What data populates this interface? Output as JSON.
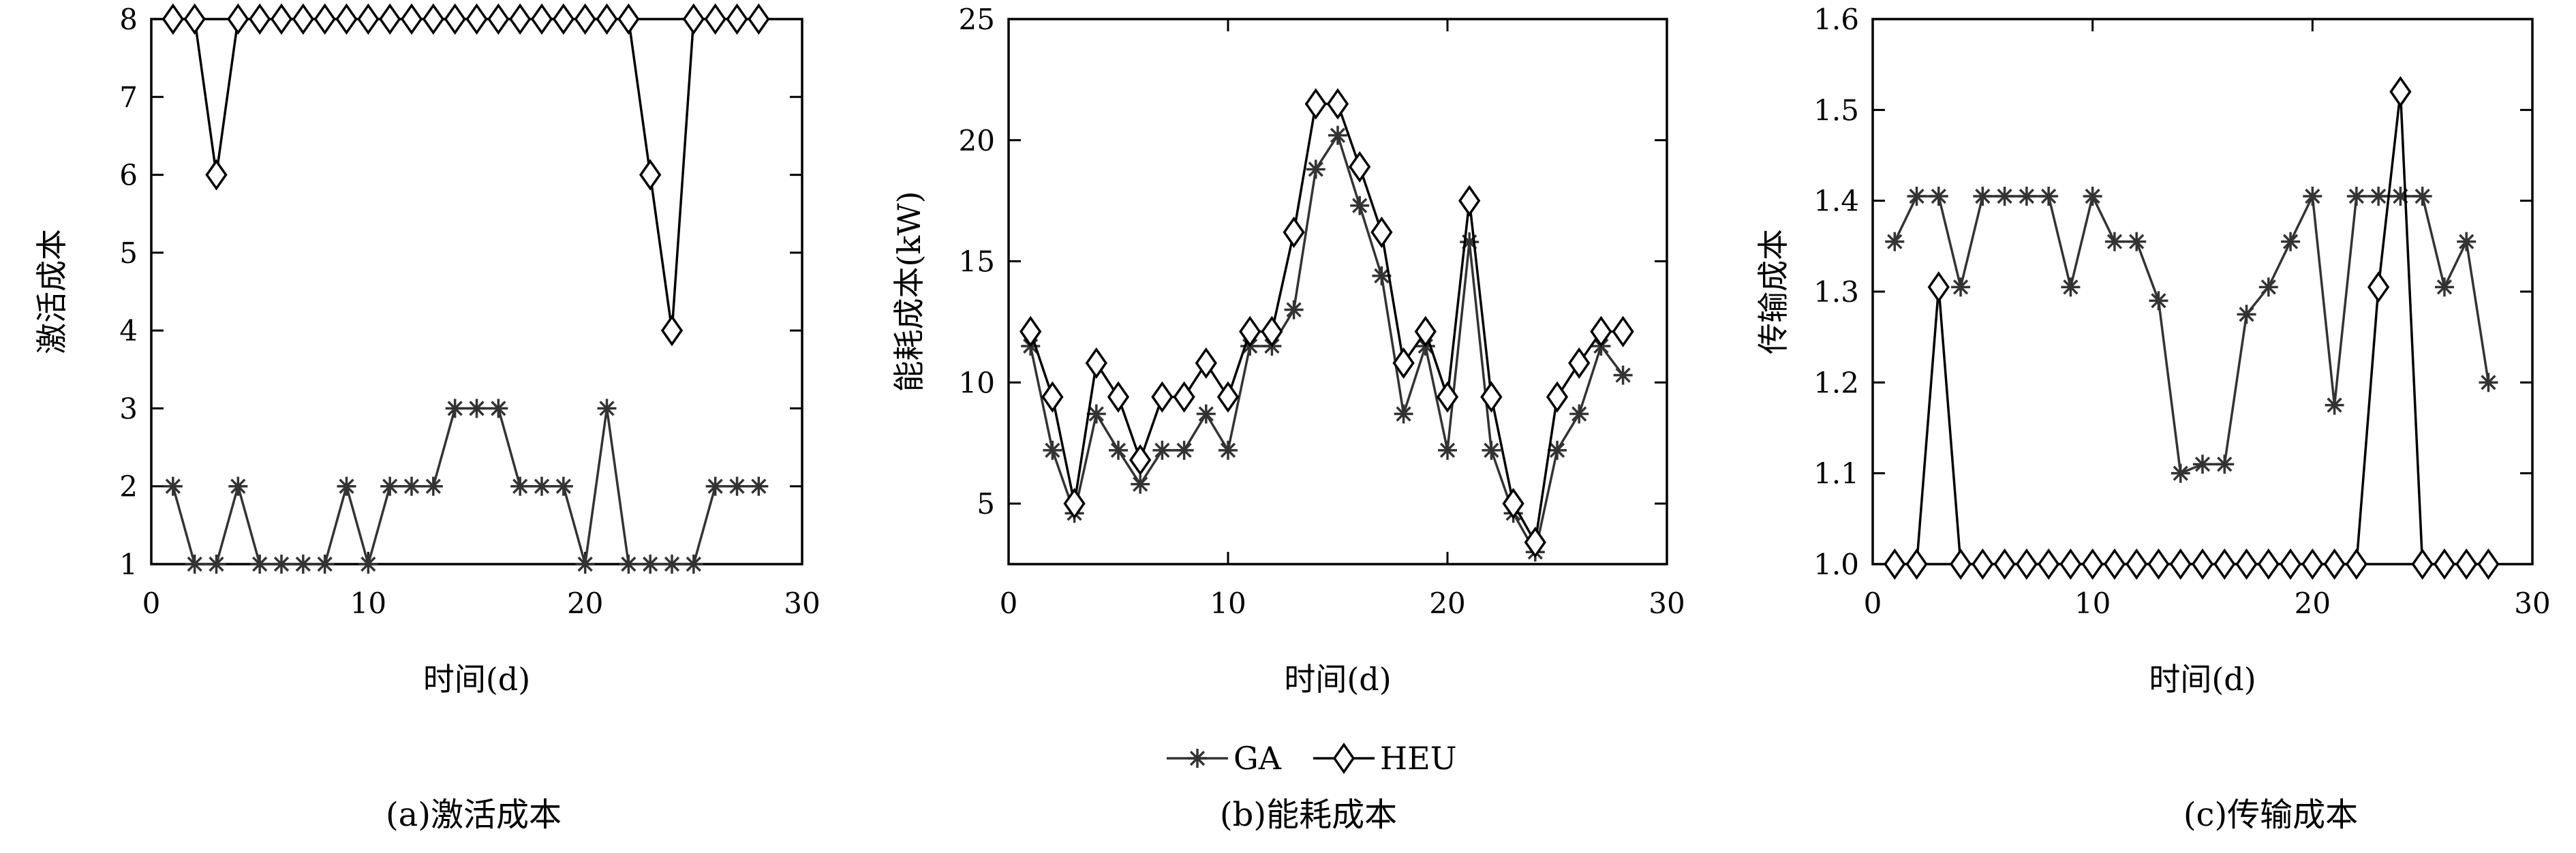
{
  "legend": [
    {
      "name": "GA",
      "marker": "asterisk",
      "color": "#333333"
    },
    {
      "name": "HEU",
      "marker": "diamond",
      "color": "#000000"
    }
  ],
  "chart_data": [
    {
      "type": "line",
      "caption": "(a)激活成本",
      "xlabel": "时间(d)",
      "ylabel": "激活成本",
      "xlim": [
        0,
        30
      ],
      "ylim": [
        1,
        8
      ],
      "xticks": [
        0,
        10,
        20,
        30
      ],
      "yticks": [
        1,
        2,
        3,
        4,
        5,
        6,
        7,
        8
      ],
      "ytick_labels": [
        "1",
        "2",
        "3",
        "4",
        "5",
        "6",
        "7",
        "8"
      ],
      "grid": false,
      "series": [
        {
          "name": "GA",
          "x": [
            1,
            2,
            3,
            4,
            5,
            6,
            7,
            8,
            9,
            10,
            11,
            12,
            13,
            14,
            15,
            16,
            17,
            18,
            19,
            20,
            21,
            22,
            23,
            24,
            25,
            26,
            27,
            28
          ],
          "values": [
            2,
            1,
            1,
            2,
            1,
            1,
            1,
            1,
            2,
            1,
            2,
            2,
            2,
            3,
            3,
            3,
            2,
            2,
            2,
            1,
            3,
            1,
            1,
            1,
            1,
            2,
            2,
            2
          ]
        },
        {
          "name": "HEU",
          "x": [
            1,
            2,
            3,
            4,
            5,
            6,
            7,
            8,
            9,
            10,
            11,
            12,
            13,
            14,
            15,
            16,
            17,
            18,
            19,
            20,
            21,
            22,
            23,
            24,
            25,
            26,
            27,
            28
          ],
          "values": [
            8,
            8,
            6,
            8,
            8,
            8,
            8,
            8,
            8,
            8,
            8,
            8,
            8,
            8,
            8,
            8,
            8,
            8,
            8,
            8,
            8,
            8,
            6,
            4,
            8,
            8,
            8,
            8
          ]
        }
      ]
    },
    {
      "type": "line",
      "caption": "(b)能耗成本",
      "xlabel": "时间(d)",
      "ylabel": "能耗成本(kW)",
      "xlim": [
        0,
        30
      ],
      "ylim": [
        2.5,
        25
      ],
      "xticks": [
        0,
        10,
        20,
        30
      ],
      "yticks": [
        5,
        10,
        15,
        20,
        25
      ],
      "ytick_labels": [
        "5",
        "10",
        "15",
        "20",
        "25"
      ],
      "grid": false,
      "series": [
        {
          "name": "GA",
          "x": [
            1,
            2,
            3,
            4,
            5,
            6,
            7,
            8,
            9,
            10,
            11,
            12,
            13,
            14,
            15,
            16,
            17,
            18,
            19,
            20,
            21,
            22,
            23,
            24,
            25,
            26,
            27,
            28
          ],
          "values": [
            11.5,
            7.2,
            4.6,
            8.7,
            7.2,
            5.8,
            7.2,
            7.2,
            8.7,
            7.2,
            11.5,
            11.5,
            13.0,
            18.8,
            20.2,
            17.3,
            14.4,
            8.7,
            11.5,
            7.2,
            15.8,
            7.2,
            4.6,
            3.0,
            7.2,
            8.7,
            11.5,
            10.3
          ]
        },
        {
          "name": "HEU",
          "x": [
            1,
            2,
            3,
            4,
            5,
            6,
            7,
            8,
            9,
            10,
            11,
            12,
            13,
            14,
            15,
            16,
            17,
            18,
            19,
            20,
            21,
            22,
            23,
            24,
            25,
            26,
            27,
            28
          ],
          "values": [
            12.1,
            9.4,
            5.0,
            10.8,
            9.4,
            6.8,
            9.4,
            9.4,
            10.8,
            9.4,
            12.1,
            12.1,
            16.2,
            21.5,
            21.5,
            18.9,
            16.2,
            10.8,
            12.1,
            9.4,
            17.5,
            9.4,
            5.0,
            3.4,
            9.4,
            10.8,
            12.1,
            12.1
          ]
        }
      ]
    },
    {
      "type": "line",
      "caption": "(c)传输成本",
      "xlabel": "时间(d)",
      "ylabel": "传输成本",
      "xlim": [
        0,
        30
      ],
      "ylim": [
        1.0,
        1.6
      ],
      "xticks": [
        0,
        10,
        20,
        30
      ],
      "yticks": [
        1.0,
        1.1,
        1.2,
        1.3,
        1.4,
        1.5,
        1.6
      ],
      "ytick_labels": [
        "1.0",
        "1.1",
        "1.2",
        "1.3",
        "1.4",
        "1.5",
        "1.6"
      ],
      "grid": false,
      "series": [
        {
          "name": "GA",
          "x": [
            1,
            2,
            3,
            4,
            5,
            6,
            7,
            8,
            9,
            10,
            11,
            12,
            13,
            14,
            15,
            16,
            17,
            18,
            19,
            20,
            21,
            22,
            23,
            24,
            25,
            26,
            27,
            28
          ],
          "values": [
            1.355,
            1.405,
            1.405,
            1.305,
            1.405,
            1.405,
            1.405,
            1.405,
            1.305,
            1.405,
            1.355,
            1.355,
            1.29,
            1.1,
            1.11,
            1.11,
            1.275,
            1.305,
            1.355,
            1.405,
            1.175,
            1.405,
            1.405,
            1.405,
            1.405,
            1.305,
            1.355,
            1.2
          ]
        },
        {
          "name": "HEU",
          "x": [
            1,
            2,
            3,
            4,
            5,
            6,
            7,
            8,
            9,
            10,
            11,
            12,
            13,
            14,
            15,
            16,
            17,
            18,
            19,
            20,
            21,
            22,
            23,
            24,
            25,
            26,
            27,
            28
          ],
          "values": [
            1.0,
            1.0,
            1.305,
            1.0,
            1.0,
            1.0,
            1.0,
            1.0,
            1.0,
            1.0,
            1.0,
            1.0,
            1.0,
            1.0,
            1.0,
            1.0,
            1.0,
            1.0,
            1.0,
            1.0,
            1.0,
            1.0,
            1.305,
            1.52,
            1.0,
            1.0,
            1.0,
            1.0
          ]
        }
      ]
    }
  ]
}
